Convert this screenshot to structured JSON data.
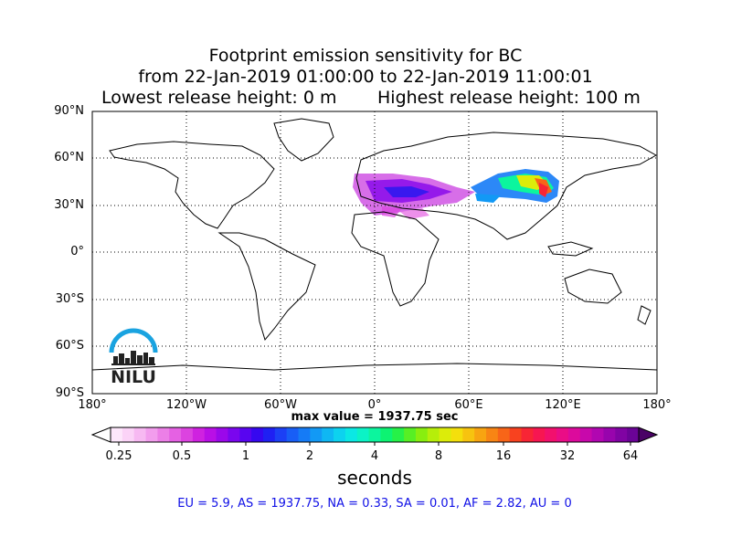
{
  "title": {
    "line1": "Footprint emission sensitivity for BC",
    "line2": "from 22-Jan-2019 01:00:00 to 22-Jan-2019 11:00:01",
    "release_low": "Lowest release height: 0 m",
    "release_high": "Highest release height: 100 m"
  },
  "map": {
    "lat_labels": [
      "90°N",
      "60°N",
      "30°N",
      "0°",
      "30°S",
      "60°S",
      "90°S"
    ],
    "lon_labels": [
      "180°",
      "120°W",
      "60°W",
      "0°",
      "60°E",
      "120°E",
      "180°"
    ],
    "max_value": "max value = 1937.75 sec",
    "logo_text": "NILU"
  },
  "colorbar": {
    "tick_labels": [
      "0.25",
      "0.5",
      "1",
      "2",
      "4",
      "8",
      "16",
      "32",
      "64"
    ],
    "units": "seconds",
    "colors": [
      "#fde7fb",
      "#fbd3f7",
      "#f7b9f2",
      "#f29ded",
      "#ec7fe7",
      "#e561e3",
      "#dc43e0",
      "#cf22e0",
      "#b90fe6",
      "#9b08ea",
      "#7a06ee",
      "#5805f0",
      "#3608f0",
      "#1f20f3",
      "#1c40f5",
      "#185ef6",
      "#157bf6",
      "#1299f5",
      "#0fb7f3",
      "#0dd2ef",
      "#0be8e4",
      "#0bf3c6",
      "#0cf59e",
      "#0df372",
      "#26f148",
      "#57ef24",
      "#88ee0f",
      "#b6ee0a",
      "#dcec0a",
      "#f4df0c",
      "#f7c30f",
      "#f8a411",
      "#f88514",
      "#f86518",
      "#f8421f",
      "#f82535",
      "#f71651",
      "#f2106d",
      "#ea0d86",
      "#dc0a9c",
      "#c808ab",
      "#b106b1",
      "#9804ad",
      "#8003a3",
      "#6a0396"
    ]
  },
  "stats": "EU = 5.9,  AS = 1937.75,  NA = 0.33,  SA = 0.01,  AF = 2.82,  AU = 0"
}
